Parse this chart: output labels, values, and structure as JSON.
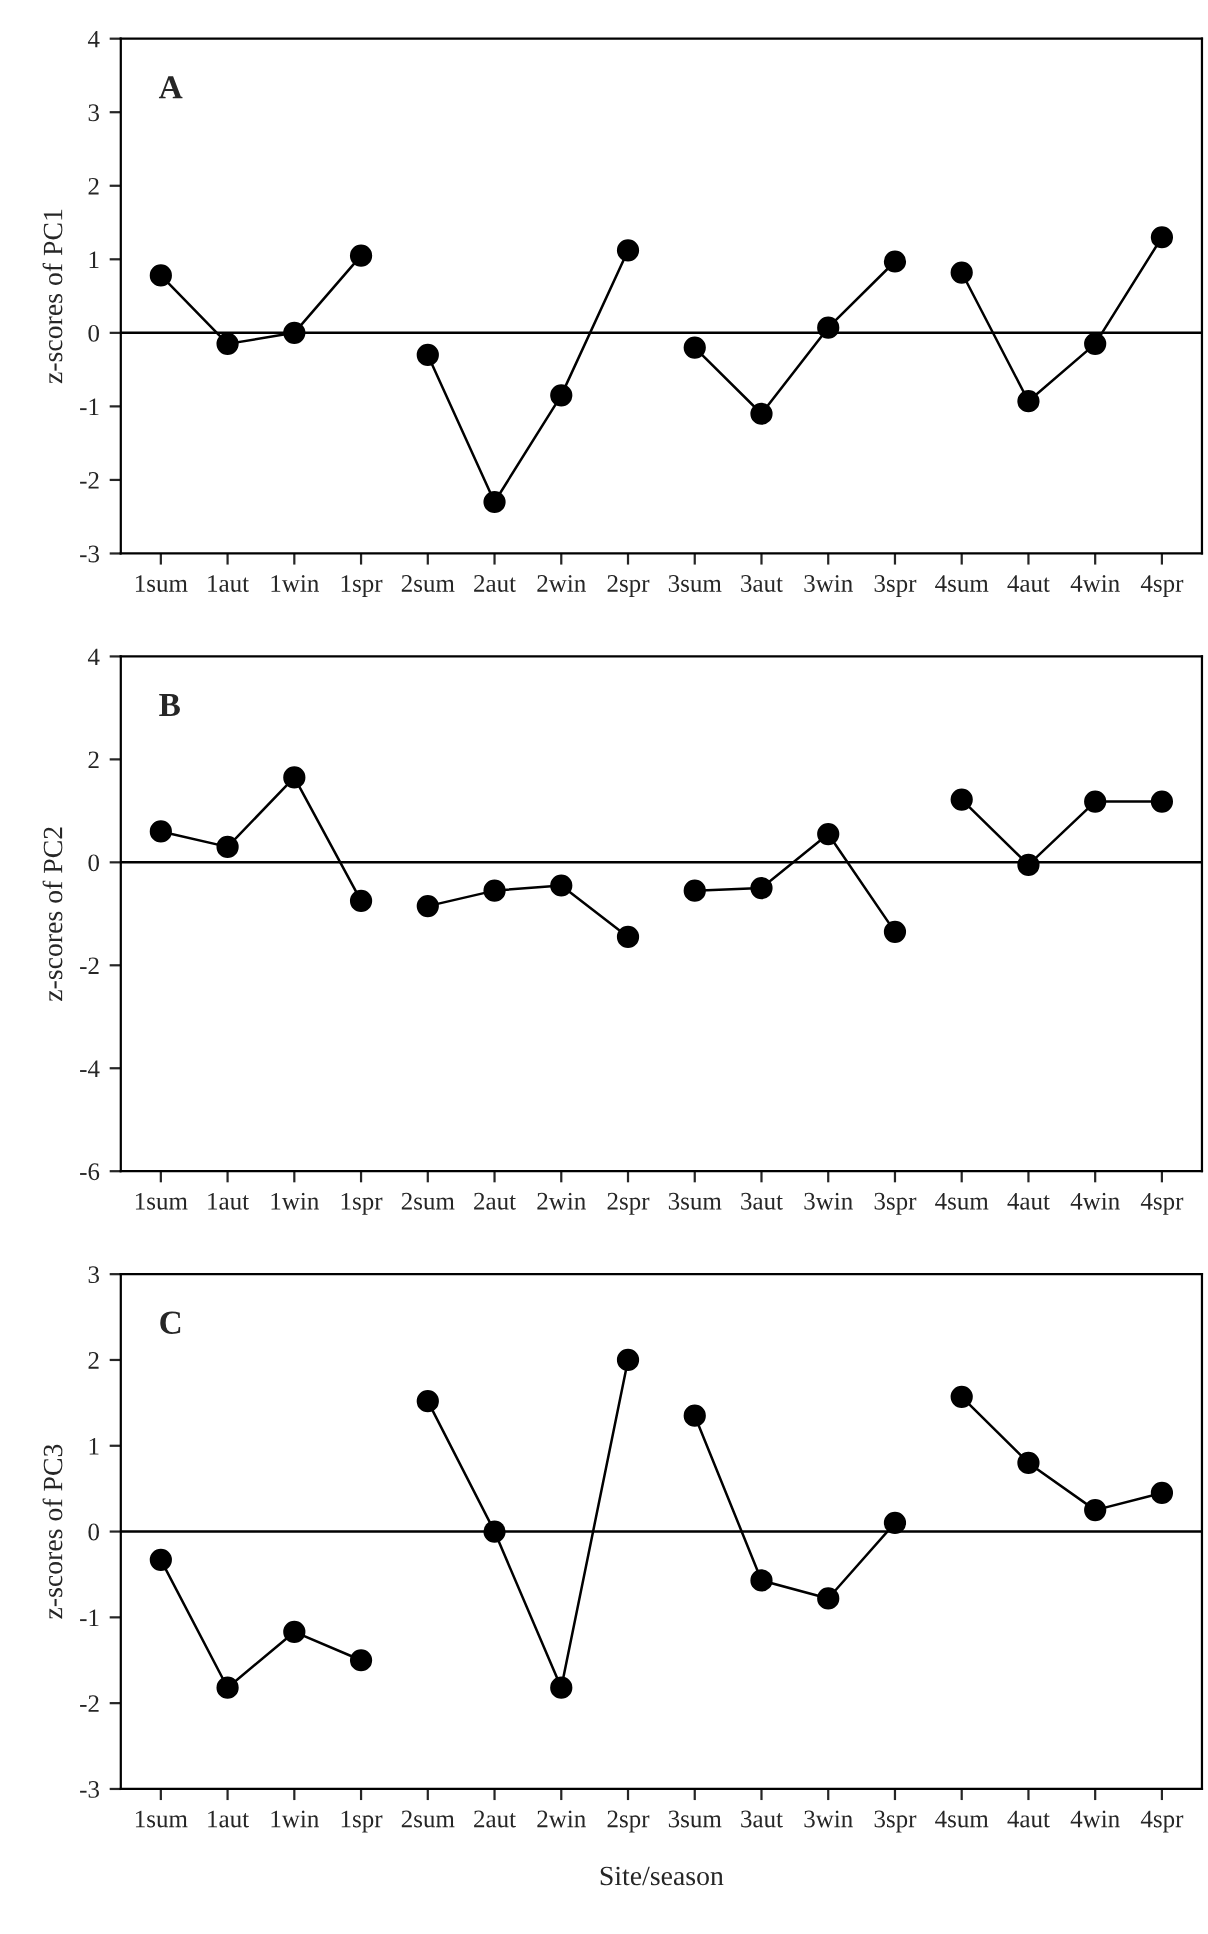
{
  "chart_data": [
    {
      "type": "line",
      "ylabel": "z-scores of PC1",
      "annotations": [
        "A"
      ],
      "marker": "circle",
      "line_style": "solid",
      "grid": false,
      "legend": false,
      "categories": [
        "1sum",
        "1aut",
        "1win",
        "1spr",
        "2sum",
        "2aut",
        "2win",
        "2spr",
        "3sum",
        "3aut",
        "3win",
        "3spr",
        "4sum",
        "4aut",
        "4win",
        "4spr"
      ],
      "ylim": [
        -3,
        4
      ],
      "yticks": [
        -3,
        -2,
        -1,
        0,
        1,
        2,
        3,
        4
      ],
      "ref_lines": [
        {
          "axis": "y",
          "value": 0,
          "color": "#000000"
        }
      ],
      "series": [
        {
          "color": "#000000",
          "values": [
            0.78,
            -0.15,
            0.0,
            1.05,
            null,
            null,
            null,
            null,
            null,
            null,
            null,
            null,
            null,
            null,
            null,
            null
          ]
        },
        {
          "color": "#000000",
          "values": [
            null,
            null,
            null,
            null,
            -0.3,
            -2.3,
            -0.85,
            1.12,
            null,
            null,
            null,
            null,
            null,
            null,
            null,
            null
          ]
        },
        {
          "color": "#000000",
          "values": [
            null,
            null,
            null,
            null,
            null,
            null,
            null,
            null,
            -0.2,
            -1.1,
            0.07,
            0.97,
            null,
            null,
            null,
            null
          ]
        },
        {
          "color": "#000000",
          "values": [
            null,
            null,
            null,
            null,
            null,
            null,
            null,
            null,
            null,
            null,
            null,
            null,
            0.82,
            -0.93,
            -0.15,
            1.3
          ]
        }
      ]
    },
    {
      "type": "line",
      "ylabel": "z-scores of PC2",
      "annotations": [
        "B"
      ],
      "marker": "circle",
      "line_style": "solid",
      "grid": false,
      "legend": false,
      "categories": [
        "1sum",
        "1aut",
        "1win",
        "1spr",
        "2sum",
        "2aut",
        "2win",
        "2spr",
        "3sum",
        "3aut",
        "3win",
        "3spr",
        "4sum",
        "4aut",
        "4win",
        "4spr"
      ],
      "ylim": [
        -6,
        4
      ],
      "yticks": [
        -6,
        -4,
        -2,
        0,
        2,
        4
      ],
      "ref_lines": [
        {
          "axis": "y",
          "value": 0,
          "color": "#000000"
        }
      ],
      "series": [
        {
          "color": "#000000",
          "values": [
            0.6,
            0.3,
            1.65,
            -0.75,
            null,
            null,
            null,
            null,
            null,
            null,
            null,
            null,
            null,
            null,
            null,
            null
          ]
        },
        {
          "color": "#000000",
          "values": [
            null,
            null,
            null,
            null,
            -0.85,
            -0.55,
            -0.45,
            -1.45,
            null,
            null,
            null,
            null,
            null,
            null,
            null,
            null
          ]
        },
        {
          "color": "#000000",
          "values": [
            null,
            null,
            null,
            null,
            null,
            null,
            null,
            null,
            -0.55,
            -0.5,
            0.55,
            -1.35,
            null,
            null,
            null,
            null
          ]
        },
        {
          "color": "#000000",
          "values": [
            null,
            null,
            null,
            null,
            null,
            null,
            null,
            null,
            null,
            null,
            null,
            null,
            1.22,
            -0.05,
            1.18,
            1.18
          ]
        }
      ]
    },
    {
      "type": "line",
      "ylabel": "z-scores of PC3",
      "xlabel": "Site/season",
      "annotations": [
        "C"
      ],
      "marker": "circle",
      "line_style": "solid",
      "grid": false,
      "legend": false,
      "categories": [
        "1sum",
        "1aut",
        "1win",
        "1spr",
        "2sum",
        "2aut",
        "2win",
        "2spr",
        "3sum",
        "3aut",
        "3win",
        "3spr",
        "4sum",
        "4aut",
        "4win",
        "4spr"
      ],
      "ylim": [
        -3,
        3
      ],
      "yticks": [
        -3,
        -2,
        -1,
        0,
        1,
        2,
        3
      ],
      "ref_lines": [
        {
          "axis": "y",
          "value": 0,
          "color": "#000000"
        }
      ],
      "series": [
        {
          "color": "#000000",
          "values": [
            -0.33,
            -1.82,
            -1.17,
            -1.5,
            null,
            null,
            null,
            null,
            null,
            null,
            null,
            null,
            null,
            null,
            null,
            null
          ]
        },
        {
          "color": "#000000",
          "values": [
            null,
            null,
            null,
            null,
            1.52,
            0.0,
            -1.82,
            2.0,
            null,
            null,
            null,
            null,
            null,
            null,
            null,
            null
          ]
        },
        {
          "color": "#000000",
          "values": [
            null,
            null,
            null,
            null,
            null,
            null,
            null,
            null,
            1.35,
            -0.57,
            -0.78,
            0.1,
            null,
            null,
            null,
            null
          ]
        },
        {
          "color": "#000000",
          "values": [
            null,
            null,
            null,
            null,
            null,
            null,
            null,
            null,
            null,
            null,
            null,
            null,
            1.57,
            0.8,
            0.25,
            0.45
          ]
        }
      ]
    }
  ]
}
